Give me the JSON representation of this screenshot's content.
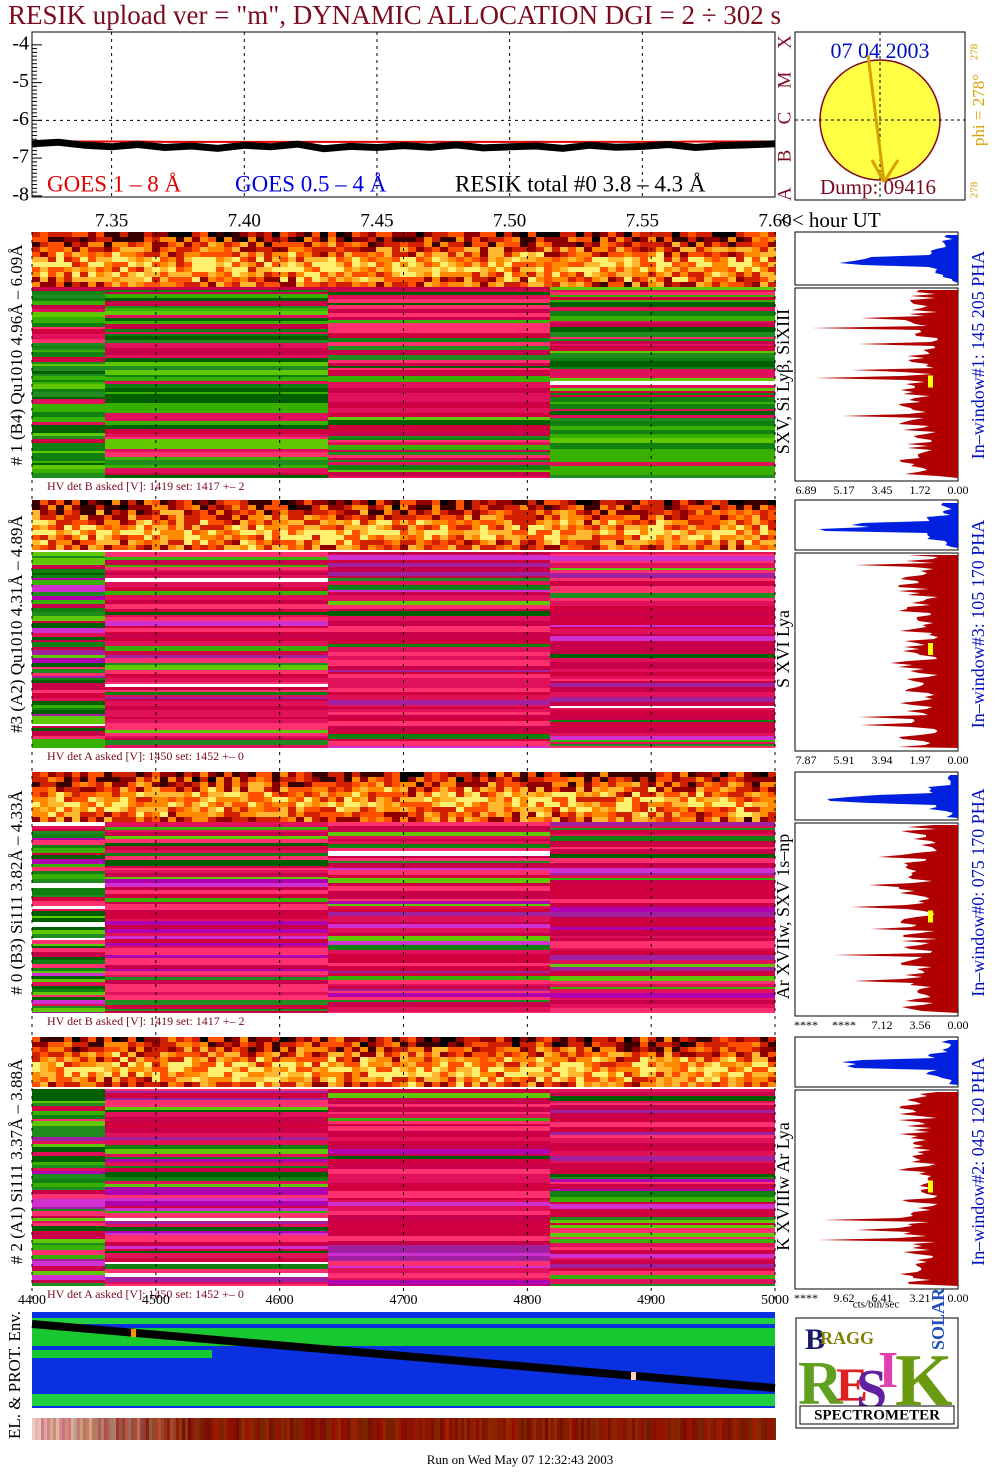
{
  "title": "RESIK upload ver = \"m\", DYNAMIC ALLOCATION  DGI =   2 ÷ 302 s",
  "goes": {
    "ylim": [
      -8.03,
      -3.66
    ],
    "yticks": [
      -4,
      -5,
      -6,
      -7,
      -8
    ],
    "xlim": [
      7.32,
      7.6
    ],
    "xticks": [
      7.35,
      {
        "value": 7.4,
        "label": "7.40"
      },
      7.45,
      {
        "value": 7.5,
        "label": "7.50"
      },
      7.55,
      {
        "value": 7.6,
        "label": "7.60"
      }
    ],
    "x_label": "<< hour UT",
    "flare_classes": [
      "X",
      "M",
      "C",
      "B",
      "A"
    ],
    "x": [
      7.32,
      7.33,
      7.34,
      7.35,
      7.36,
      7.37,
      7.38,
      7.39,
      7.4,
      7.41,
      7.42,
      7.43,
      7.44,
      7.45,
      7.46,
      7.47,
      7.48,
      7.49,
      7.5,
      7.51,
      7.52,
      7.53,
      7.54,
      7.55,
      7.56,
      7.57,
      7.58,
      7.59,
      7.6
    ],
    "series": [
      {
        "name": "GOES 1 – 8 Å",
        "color": "#e00000",
        "values": [
          -6.56,
          -6.56,
          -6.56,
          -6.56,
          -6.56,
          -6.57,
          -6.57,
          -6.57,
          -6.57,
          -6.57,
          -6.57,
          -6.57,
          -6.57,
          -6.57,
          -6.57,
          -6.57,
          -6.57,
          -6.57,
          -6.57,
          -6.57,
          -6.57,
          -6.57,
          -6.57,
          -6.57,
          -6.57,
          -6.56,
          -6.56,
          -6.56,
          -6.56
        ]
      },
      {
        "name": "GOES 0.5 – 4 Å",
        "color": "#0000e0"
      },
      {
        "name": "RESIK total #0  3.8 – 4.3 Å",
        "color": "#000000",
        "values": [
          -6.62,
          -6.58,
          -6.66,
          -6.7,
          -6.64,
          -6.72,
          -6.68,
          -6.74,
          -6.66,
          -6.7,
          -6.63,
          -6.75,
          -6.69,
          -6.72,
          -6.67,
          -6.71,
          -6.65,
          -6.73,
          -6.7,
          -6.68,
          -6.74,
          -6.66,
          -6.71,
          -6.69,
          -6.64,
          -6.72,
          -6.67,
          -6.65,
          -6.62
        ]
      }
    ]
  },
  "sun": {
    "date": "07 04 2003",
    "dump": "Dump: 09416",
    "phi": "phi = 278°",
    "phi_super": "278",
    "phi_corner": "278"
  },
  "panels": [
    {
      "label": "# 1 (B4) Qu1010 4.96Å – 6.09Å",
      "lines": "SXV, Si Lyβ, SiXIII",
      "window": "In–window#1:  145 205 PHA",
      "hv": "HV det B asked [V]:  1419 set:  1417 +–   2",
      "hist_ticks": [
        "6.89",
        "5.17",
        "3.45",
        "1.72",
        "0.00"
      ]
    },
    {
      "label": "#3 (A2) Qu1010  4.31Å – 4.89Å",
      "lines": "S XVI Lya",
      "window": "In–window#3:  105 170 PHA",
      "hv": "HV det A asked [V]:  1450 set:  1452 +–   0",
      "hist_ticks": [
        "7.87",
        "5.91",
        "3.94",
        "1.97",
        "0.00"
      ]
    },
    {
      "label": "# 0 (B3) Si111  3.82Å – 4.33Å",
      "lines": "Ar XVIIw,  SXV 1s–np",
      "window": "In–window#0:  075 170 PHA",
      "hv": "HV det B asked [V]:  1419 set:  1417 +–   2",
      "hist_ticks": [
        "****",
        "****",
        "7.12",
        "3.56",
        "0.00"
      ]
    },
    {
      "label": "# 2 (A1) Si111  3.37Å – 3.88Å",
      "lines": "K XVIIIw  Ar Lya",
      "window": "In–window#2:  045 120 PHA",
      "hv": "HV det A asked [V]:  1450 set:  1452 +–   0",
      "hist_ticks": [
        "****",
        "9.62",
        "6.41",
        "3.21",
        "0.00"
      ]
    }
  ],
  "hist_unit": "cts/bin/sec",
  "bottom_axis": {
    "xlim": [
      4400,
      5000
    ],
    "xticks": [
      4400,
      4500,
      4600,
      4700,
      4800,
      4900,
      5000
    ]
  },
  "env_label": "EL. & PROT. Env.",
  "logo": {
    "letters": [
      "B",
      "RAGG",
      "R",
      "E",
      "S",
      "I",
      "K",
      "SOLAR"
    ],
    "caption": "SPECTROMETER"
  },
  "footer": "Run on Wed May 07 12:32:43 2003"
}
